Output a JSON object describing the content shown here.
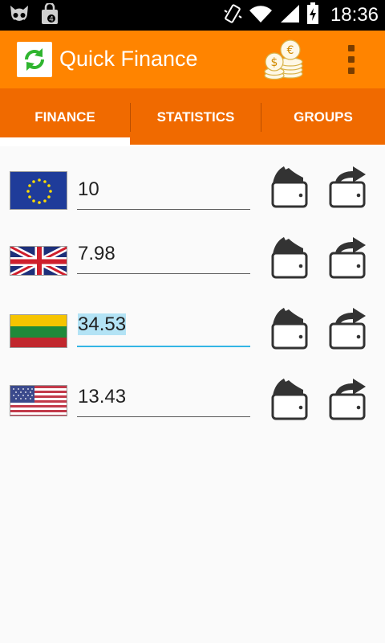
{
  "status_bar": {
    "time": "18:36",
    "icons": [
      "android-debug-icon",
      "shopping-bag-icon",
      "vibrate-icon",
      "wifi-icon",
      "signal-icon",
      "battery-charging-icon"
    ]
  },
  "app_bar": {
    "title": "Quick Finance",
    "logo_icon": "refresh-icon",
    "coins_icon": "coins-stack-icon",
    "menu_icon": "overflow-menu-icon",
    "colors": {
      "app_bar": "#ff8400",
      "tabs": "#f06a00",
      "focus": "#33b5e5"
    }
  },
  "tabs": [
    {
      "label": "FINANCE",
      "selected": true
    },
    {
      "label": "STATISTICS",
      "selected": false
    },
    {
      "label": "GROUPS",
      "selected": false
    }
  ],
  "currencies": [
    {
      "flag": "eu-flag-icon",
      "value": "10"
    },
    {
      "flag": "uk-flag-icon",
      "value": "7.98"
    },
    {
      "flag": "lithuania-flag-icon",
      "value": "34.53",
      "focused": true
    },
    {
      "flag": "us-flag-icon",
      "value": "13.43"
    }
  ],
  "actions": {
    "deposit_icon": "wallet-in-icon",
    "withdraw_icon": "wallet-out-icon"
  }
}
